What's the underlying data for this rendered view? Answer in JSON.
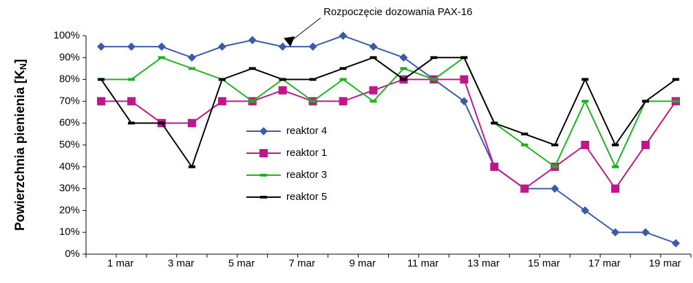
{
  "chart_data": {
    "type": "line",
    "y_label": {
      "text": "Powierzchnia pienienia [K",
      "subscript": "N",
      "suffix": "]"
    },
    "annotation": "Rozpoczęcie dozowania PAX-16",
    "categories": [
      "1 mar",
      null,
      "3 mar",
      null,
      "5 mar",
      null,
      "7 mar",
      null,
      "9 mar",
      null,
      "11 mar",
      null,
      "13 mar",
      null,
      "15 mar",
      null,
      "17 mar",
      null,
      "19 mar",
      null
    ],
    "series": [
      {
        "name": "reaktor 4",
        "color": "#3a5ba8",
        "marker": "diamond",
        "values": [
          95,
          95,
          95,
          90,
          95,
          98,
          95,
          95,
          100,
          95,
          90,
          80,
          70,
          40,
          30,
          30,
          20,
          10,
          10,
          5
        ]
      },
      {
        "name": "reaktor 1",
        "color": "#c0168c",
        "marker": "square",
        "values": [
          70,
          70,
          60,
          60,
          70,
          70,
          75,
          70,
          70,
          75,
          80,
          80,
          80,
          40,
          30,
          40,
          50,
          30,
          50,
          70
        ]
      },
      {
        "name": "reaktor 3",
        "color": "#1db31d",
        "marker": "dash",
        "values": [
          80,
          80,
          90,
          85,
          80,
          70,
          80,
          70,
          80,
          70,
          85,
          80,
          90,
          60,
          50,
          40,
          70,
          40,
          70,
          70
        ]
      },
      {
        "name": "reaktor 5",
        "color": "#000000",
        "marker": "dash",
        "values": [
          80,
          60,
          60,
          40,
          80,
          85,
          80,
          80,
          85,
          90,
          80,
          90,
          90,
          60,
          55,
          50,
          80,
          50,
          70,
          80
        ]
      }
    ],
    "ylim": [
      0,
      100
    ],
    "yticks": [
      {
        "value": 0,
        "label": "0%"
      },
      {
        "value": 10,
        "label": "10%"
      },
      {
        "value": 20,
        "label": "20%"
      },
      {
        "value": 30,
        "label": "30%"
      },
      {
        "value": 40,
        "label": "40%"
      },
      {
        "value": 50,
        "label": "50%"
      },
      {
        "value": 60,
        "label": "60%"
      },
      {
        "value": 70,
        "label": "70%"
      },
      {
        "value": 80,
        "label": "80%"
      },
      {
        "value": 90,
        "label": "90%"
      },
      {
        "value": 100,
        "label": "100%"
      }
    ],
    "grid": false,
    "legend": "center-left"
  }
}
